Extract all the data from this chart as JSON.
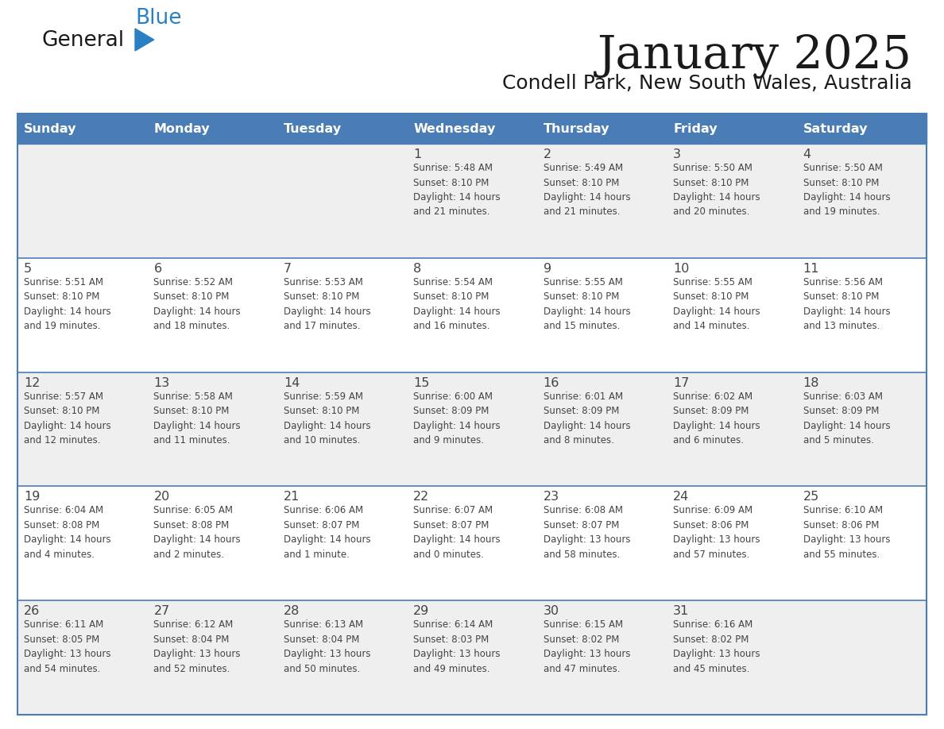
{
  "title": "January 2025",
  "subtitle": "Condell Park, New South Wales, Australia",
  "header_bg": "#4A7DB5",
  "header_text_color": "#FFFFFF",
  "day_names": [
    "Sunday",
    "Monday",
    "Tuesday",
    "Wednesday",
    "Thursday",
    "Friday",
    "Saturday"
  ],
  "row_bg_odd": "#EFEFEF",
  "row_bg_even": "#FFFFFF",
  "divider_color": "#4A7DB5",
  "text_color": "#444444",
  "logo_general_color": "#1a1a1a",
  "logo_blue_color": "#2980C4",
  "logo_triangle_color": "#2980C4",
  "title_color": "#1a1a1a",
  "subtitle_color": "#1a1a1a",
  "days": [
    {
      "day": null,
      "text": ""
    },
    {
      "day": null,
      "text": ""
    },
    {
      "day": null,
      "text": ""
    },
    {
      "day": 1,
      "text": "Sunrise: 5:48 AM\nSunset: 8:10 PM\nDaylight: 14 hours\nand 21 minutes."
    },
    {
      "day": 2,
      "text": "Sunrise: 5:49 AM\nSunset: 8:10 PM\nDaylight: 14 hours\nand 21 minutes."
    },
    {
      "day": 3,
      "text": "Sunrise: 5:50 AM\nSunset: 8:10 PM\nDaylight: 14 hours\nand 20 minutes."
    },
    {
      "day": 4,
      "text": "Sunrise: 5:50 AM\nSunset: 8:10 PM\nDaylight: 14 hours\nand 19 minutes."
    },
    {
      "day": 5,
      "text": "Sunrise: 5:51 AM\nSunset: 8:10 PM\nDaylight: 14 hours\nand 19 minutes."
    },
    {
      "day": 6,
      "text": "Sunrise: 5:52 AM\nSunset: 8:10 PM\nDaylight: 14 hours\nand 18 minutes."
    },
    {
      "day": 7,
      "text": "Sunrise: 5:53 AM\nSunset: 8:10 PM\nDaylight: 14 hours\nand 17 minutes."
    },
    {
      "day": 8,
      "text": "Sunrise: 5:54 AM\nSunset: 8:10 PM\nDaylight: 14 hours\nand 16 minutes."
    },
    {
      "day": 9,
      "text": "Sunrise: 5:55 AM\nSunset: 8:10 PM\nDaylight: 14 hours\nand 15 minutes."
    },
    {
      "day": 10,
      "text": "Sunrise: 5:55 AM\nSunset: 8:10 PM\nDaylight: 14 hours\nand 14 minutes."
    },
    {
      "day": 11,
      "text": "Sunrise: 5:56 AM\nSunset: 8:10 PM\nDaylight: 14 hours\nand 13 minutes."
    },
    {
      "day": 12,
      "text": "Sunrise: 5:57 AM\nSunset: 8:10 PM\nDaylight: 14 hours\nand 12 minutes."
    },
    {
      "day": 13,
      "text": "Sunrise: 5:58 AM\nSunset: 8:10 PM\nDaylight: 14 hours\nand 11 minutes."
    },
    {
      "day": 14,
      "text": "Sunrise: 5:59 AM\nSunset: 8:10 PM\nDaylight: 14 hours\nand 10 minutes."
    },
    {
      "day": 15,
      "text": "Sunrise: 6:00 AM\nSunset: 8:09 PM\nDaylight: 14 hours\nand 9 minutes."
    },
    {
      "day": 16,
      "text": "Sunrise: 6:01 AM\nSunset: 8:09 PM\nDaylight: 14 hours\nand 8 minutes."
    },
    {
      "day": 17,
      "text": "Sunrise: 6:02 AM\nSunset: 8:09 PM\nDaylight: 14 hours\nand 6 minutes."
    },
    {
      "day": 18,
      "text": "Sunrise: 6:03 AM\nSunset: 8:09 PM\nDaylight: 14 hours\nand 5 minutes."
    },
    {
      "day": 19,
      "text": "Sunrise: 6:04 AM\nSunset: 8:08 PM\nDaylight: 14 hours\nand 4 minutes."
    },
    {
      "day": 20,
      "text": "Sunrise: 6:05 AM\nSunset: 8:08 PM\nDaylight: 14 hours\nand 2 minutes."
    },
    {
      "day": 21,
      "text": "Sunrise: 6:06 AM\nSunset: 8:07 PM\nDaylight: 14 hours\nand 1 minute."
    },
    {
      "day": 22,
      "text": "Sunrise: 6:07 AM\nSunset: 8:07 PM\nDaylight: 14 hours\nand 0 minutes."
    },
    {
      "day": 23,
      "text": "Sunrise: 6:08 AM\nSunset: 8:07 PM\nDaylight: 13 hours\nand 58 minutes."
    },
    {
      "day": 24,
      "text": "Sunrise: 6:09 AM\nSunset: 8:06 PM\nDaylight: 13 hours\nand 57 minutes."
    },
    {
      "day": 25,
      "text": "Sunrise: 6:10 AM\nSunset: 8:06 PM\nDaylight: 13 hours\nand 55 minutes."
    },
    {
      "day": 26,
      "text": "Sunrise: 6:11 AM\nSunset: 8:05 PM\nDaylight: 13 hours\nand 54 minutes."
    },
    {
      "day": 27,
      "text": "Sunrise: 6:12 AM\nSunset: 8:04 PM\nDaylight: 13 hours\nand 52 minutes."
    },
    {
      "day": 28,
      "text": "Sunrise: 6:13 AM\nSunset: 8:04 PM\nDaylight: 13 hours\nand 50 minutes."
    },
    {
      "day": 29,
      "text": "Sunrise: 6:14 AM\nSunset: 8:03 PM\nDaylight: 13 hours\nand 49 minutes."
    },
    {
      "day": 30,
      "text": "Sunrise: 6:15 AM\nSunset: 8:02 PM\nDaylight: 13 hours\nand 47 minutes."
    },
    {
      "day": 31,
      "text": "Sunrise: 6:16 AM\nSunset: 8:02 PM\nDaylight: 13 hours\nand 45 minutes."
    },
    {
      "day": null,
      "text": ""
    }
  ]
}
